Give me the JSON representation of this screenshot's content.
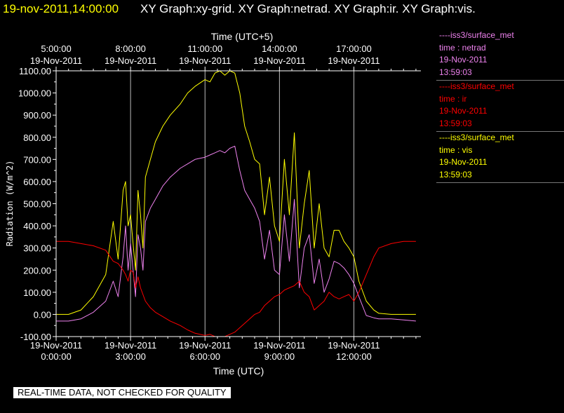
{
  "header": {
    "timestamp": "19-nov-2011,14:00:00",
    "titles": "XY Graph:xy-grid.  XY Graph:netrad.  XY Graph:ir.  XY Graph:vis."
  },
  "footer_note": "REAL-TIME DATA, NOT CHECKED FOR QUALITY",
  "legend": [
    {
      "source": "----iss3/surface_met",
      "label": "time : netrad",
      "date": "19-Nov-2011",
      "time": "13:59:03",
      "color": "#ee82ee"
    },
    {
      "source": "----iss3/surface_met",
      "label": "time : ir",
      "date": "19-Nov-2011",
      "time": "13:59:03",
      "color": "#ff0000"
    },
    {
      "source": "----iss3/surface_met",
      "label": "time : vis",
      "date": "19-Nov-2011",
      "time": "13:59:03",
      "color": "#ffff00"
    }
  ],
  "chart_data": {
    "type": "line",
    "xlabel": "Time (UTC)",
    "x2label": "Time (UTC+5)",
    "ylabel": "Radiation (W/m^2)",
    "xlim": [
      0,
      14.7
    ],
    "ylim": [
      -100,
      1100
    ],
    "grid": "vertical",
    "x_ticks": [
      0,
      3,
      6,
      9,
      12
    ],
    "x_tick_dates": [
      "19-Nov-2011",
      "19-Nov-2011",
      "19-Nov-2011",
      "19-Nov-2011",
      "19-Nov-2011"
    ],
    "x_tick_times": [
      "0:00:00",
      "3:00:00",
      "6:00:00",
      "9:00:00",
      "12:00:00"
    ],
    "x2_tick_dates": [
      "19-Nov-2011",
      "19-Nov-2011",
      "19-Nov-2011",
      "19-Nov-2011",
      "19-Nov-2011"
    ],
    "x2_tick_times": [
      "5:00:00",
      "8:00:00",
      "11:00:00",
      "14:00:00",
      "17:00:00"
    ],
    "y_ticks": [
      -100,
      0,
      100,
      200,
      300,
      400,
      500,
      600,
      700,
      800,
      900,
      1000,
      1100
    ],
    "y_tick_labels": [
      "-100.00",
      "0.00",
      "100.00",
      "200.00",
      "300.00",
      "400.00",
      "500.00",
      "600.00",
      "700.00",
      "800.00",
      "900.00",
      "1000.00",
      "1100.00"
    ],
    "series": [
      {
        "name": "time : vis",
        "color": "#ffff00",
        "x": [
          0,
          0.5,
          1,
          1.5,
          2,
          2.3,
          2.5,
          2.7,
          2.8,
          2.9,
          3.0,
          3.1,
          3.2,
          3.3,
          3.4,
          3.5,
          3.6,
          3.8,
          4.0,
          4.3,
          4.6,
          5.0,
          5.3,
          5.6,
          6.0,
          6.2,
          6.4,
          6.6,
          6.8,
          7.0,
          7.2,
          7.4,
          7.6,
          7.8,
          8.0,
          8.2,
          8.4,
          8.6,
          8.8,
          9.0,
          9.2,
          9.4,
          9.6,
          9.8,
          10.0,
          10.2,
          10.4,
          10.6,
          10.8,
          11.0,
          11.2,
          11.4,
          11.6,
          11.8,
          12.0,
          12.2,
          12.5,
          12.8,
          13.0,
          13.5,
          14.0,
          14.5
        ],
        "y": [
          0,
          0,
          20,
          80,
          180,
          420,
          250,
          560,
          600,
          400,
          450,
          320,
          200,
          560,
          450,
          300,
          620,
          700,
          780,
          850,
          900,
          950,
          1000,
          1030,
          1060,
          1050,
          1090,
          1100,
          1080,
          1100,
          1090,
          1000,
          850,
          780,
          700,
          680,
          450,
          620,
          400,
          330,
          700,
          450,
          820,
          300,
          500,
          650,
          300,
          500,
          300,
          260,
          380,
          380,
          330,
          300,
          260,
          150,
          60,
          20,
          5,
          0,
          0,
          0
        ]
      },
      {
        "name": "time : netrad",
        "color": "#ee82ee",
        "x": [
          0,
          0.5,
          1,
          1.5,
          2,
          2.3,
          2.5,
          2.7,
          2.8,
          2.9,
          3.0,
          3.1,
          3.2,
          3.3,
          3.4,
          3.5,
          3.6,
          3.8,
          4.0,
          4.3,
          4.6,
          5.0,
          5.3,
          5.6,
          6.0,
          6.2,
          6.4,
          6.6,
          6.8,
          7.0,
          7.2,
          7.4,
          7.6,
          7.8,
          8.0,
          8.2,
          8.4,
          8.6,
          8.8,
          9.0,
          9.2,
          9.4,
          9.6,
          9.8,
          10.0,
          10.2,
          10.4,
          10.6,
          10.8,
          11.0,
          11.2,
          11.4,
          11.6,
          11.8,
          12.0,
          12.2,
          12.5,
          12.8,
          13.0,
          13.5,
          14.0,
          14.5
        ],
        "y": [
          -30,
          -30,
          -20,
          10,
          60,
          150,
          80,
          260,
          400,
          200,
          320,
          200,
          80,
          360,
          300,
          200,
          420,
          480,
          520,
          580,
          620,
          660,
          680,
          700,
          710,
          720,
          730,
          740,
          730,
          750,
          760,
          650,
          560,
          520,
          480,
          420,
          250,
          380,
          200,
          180,
          450,
          240,
          520,
          120,
          300,
          360,
          140,
          250,
          100,
          160,
          240,
          230,
          210,
          180,
          140,
          80,
          -5,
          -15,
          -20,
          -20,
          -25,
          -30
        ]
      },
      {
        "name": "time : ir",
        "color": "#ff0000",
        "x": [
          0,
          0.5,
          1,
          1.5,
          2,
          2.3,
          2.5,
          2.7,
          2.8,
          2.9,
          3.0,
          3.1,
          3.2,
          3.3,
          3.4,
          3.5,
          3.6,
          3.8,
          4.0,
          4.3,
          4.6,
          5.0,
          5.3,
          5.6,
          6.0,
          6.2,
          6.4,
          6.6,
          6.8,
          7.0,
          7.2,
          7.4,
          7.6,
          7.8,
          8.0,
          8.2,
          8.4,
          8.6,
          8.8,
          9.0,
          9.2,
          9.4,
          9.6,
          9.8,
          10.0,
          10.2,
          10.4,
          10.6,
          10.8,
          11.0,
          11.2,
          11.4,
          11.6,
          11.8,
          12.0,
          12.2,
          12.5,
          12.8,
          13.0,
          13.5,
          14.0,
          14.5
        ],
        "y": [
          330,
          330,
          320,
          310,
          290,
          240,
          230,
          200,
          180,
          150,
          200,
          190,
          120,
          170,
          120,
          90,
          60,
          30,
          10,
          -10,
          -30,
          -50,
          -70,
          -85,
          -95,
          -90,
          -100,
          -100,
          -100,
          -90,
          -80,
          -60,
          -40,
          -20,
          0,
          10,
          40,
          60,
          80,
          90,
          110,
          120,
          130,
          150,
          100,
          80,
          20,
          40,
          60,
          100,
          80,
          70,
          80,
          90,
          60,
          100,
          180,
          260,
          300,
          320,
          330,
          330
        ]
      }
    ]
  }
}
